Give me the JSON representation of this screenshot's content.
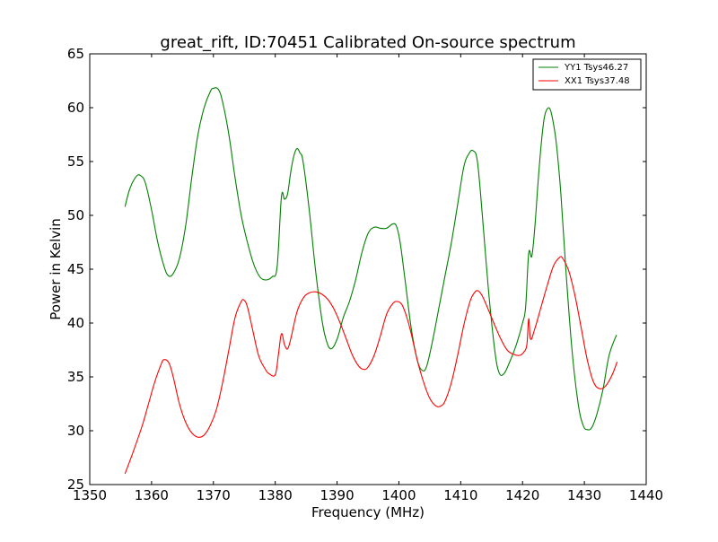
{
  "chart_data": {
    "type": "line",
    "title": "great_rift, ID:70451 Calibrated On-source spectrum",
    "xlabel": "Frequency (MHz)",
    "ylabel": "Power in Kelvin",
    "xlim": [
      1350,
      1440
    ],
    "ylim": [
      25,
      65
    ],
    "xticks": [
      "1350",
      "1360",
      "1370",
      "1380",
      "1390",
      "1400",
      "1410",
      "1420",
      "1430",
      "1440"
    ],
    "yticks": [
      "25",
      "30",
      "35",
      "40",
      "45",
      "50",
      "55",
      "60",
      "65"
    ],
    "grid": false,
    "legend_position": "top-right",
    "series": [
      {
        "name": "YY1 Tsys46.27",
        "color": "#008000",
        "x": [
          1355.7,
          1356.5,
          1357.5,
          1358.2,
          1359.0,
          1360.0,
          1361.0,
          1362.0,
          1362.7,
          1363.5,
          1364.5,
          1365.5,
          1366.5,
          1367.5,
          1368.5,
          1369.5,
          1370.0,
          1370.8,
          1371.5,
          1372.5,
          1373.5,
          1374.5,
          1375.5,
          1376.5,
          1377.5,
          1378.5,
          1379.5,
          1380.3,
          1381.0,
          1381.5,
          1382.0,
          1382.5,
          1383.0,
          1383.5,
          1384.0,
          1384.5,
          1385.5,
          1386.5,
          1387.5,
          1388.2,
          1389.0,
          1390.0,
          1391.0,
          1392.0,
          1393.0,
          1394.0,
          1395.0,
          1396.0,
          1397.0,
          1398.0,
          1399.0,
          1399.6,
          1400.2,
          1401.0,
          1402.0,
          1403.0,
          1403.8,
          1404.5,
          1405.5,
          1406.5,
          1407.5,
          1408.5,
          1409.5,
          1410.5,
          1411.3,
          1412.0,
          1412.7,
          1413.5,
          1414.5,
          1415.5,
          1416.2,
          1417.0,
          1418.0,
          1419.0,
          1420.0,
          1420.5,
          1421.0,
          1421.5,
          1422.0,
          1422.5,
          1423.0,
          1423.5,
          1424.0,
          1424.5,
          1425.0,
          1425.5,
          1426.2,
          1427.0,
          1428.0,
          1429.0,
          1429.8,
          1430.5,
          1431.2,
          1432.0,
          1433.0,
          1434.0,
          1435.2
        ],
        "values": [
          50.8,
          52.5,
          53.6,
          53.7,
          53.0,
          50.5,
          47.5,
          45.3,
          44.4,
          44.6,
          46.0,
          49.0,
          53.5,
          57.5,
          60.0,
          61.5,
          61.8,
          61.7,
          60.5,
          57.5,
          53.5,
          50.0,
          47.5,
          45.5,
          44.3,
          44.0,
          44.3,
          45.2,
          51.7,
          51.5,
          52.0,
          54.0,
          55.5,
          56.2,
          55.8,
          55.0,
          50.5,
          45.0,
          40.5,
          38.5,
          37.6,
          38.5,
          40.5,
          42.0,
          44.0,
          46.5,
          48.3,
          48.9,
          48.8,
          48.8,
          49.2,
          49.0,
          47.5,
          44.0,
          39.5,
          36.5,
          35.6,
          36.0,
          38.5,
          41.5,
          44.5,
          47.5,
          51.0,
          54.5,
          55.7,
          56.0,
          55.0,
          50.0,
          43.0,
          37.5,
          35.4,
          35.3,
          36.5,
          38.0,
          40.0,
          41.5,
          46.5,
          46.2,
          49.0,
          53.0,
          56.5,
          59.0,
          59.9,
          59.8,
          58.5,
          56.5,
          52.0,
          45.0,
          37.5,
          32.5,
          30.5,
          30.1,
          30.3,
          31.5,
          33.8,
          37.0,
          38.9
        ]
      },
      {
        "name": "XX1 Tsys37.48",
        "color": "#ff0000",
        "x": [
          1355.7,
          1357.0,
          1358.5,
          1359.5,
          1360.5,
          1361.5,
          1362.0,
          1362.8,
          1363.5,
          1364.5,
          1365.5,
          1366.5,
          1367.5,
          1368.5,
          1369.5,
          1370.5,
          1371.5,
          1372.5,
          1373.5,
          1374.5,
          1375.0,
          1375.5,
          1376.3,
          1377.3,
          1378.3,
          1379.0,
          1380.0,
          1380.5,
          1381.0,
          1381.5,
          1382.0,
          1382.5,
          1383.5,
          1384.5,
          1385.5,
          1386.5,
          1387.5,
          1388.5,
          1389.5,
          1390.5,
          1391.5,
          1392.5,
          1393.5,
          1394.3,
          1395.0,
          1396.0,
          1397.0,
          1398.0,
          1399.0,
          1399.7,
          1400.5,
          1401.3,
          1402.0,
          1403.0,
          1404.0,
          1405.0,
          1406.0,
          1406.8,
          1407.5,
          1408.5,
          1409.5,
          1410.5,
          1411.5,
          1412.2,
          1412.8,
          1413.5,
          1414.5,
          1415.5,
          1416.5,
          1417.5,
          1418.5,
          1419.5,
          1420.2,
          1420.7,
          1421.0,
          1421.3,
          1422.0,
          1423.0,
          1424.0,
          1425.0,
          1426.0,
          1426.5,
          1427.5,
          1428.5,
          1429.5,
          1430.5,
          1431.5,
          1432.5,
          1433.5,
          1434.5,
          1435.3
        ],
        "values": [
          26.0,
          28.0,
          30.5,
          32.5,
          34.5,
          36.1,
          36.6,
          36.3,
          35.0,
          32.5,
          30.8,
          29.8,
          29.4,
          29.6,
          30.5,
          32.0,
          34.5,
          37.5,
          40.5,
          42.0,
          42.1,
          41.5,
          39.5,
          37.0,
          35.8,
          35.3,
          35.2,
          37.0,
          39.0,
          38.0,
          37.6,
          38.5,
          41.0,
          42.3,
          42.8,
          42.9,
          42.7,
          42.2,
          41.3,
          40.0,
          38.5,
          37.0,
          36.0,
          35.7,
          35.9,
          37.0,
          38.8,
          40.8,
          41.8,
          42.0,
          41.7,
          40.5,
          39.0,
          36.5,
          34.5,
          33.0,
          32.3,
          32.3,
          32.8,
          34.5,
          37.0,
          39.8,
          42.0,
          42.8,
          43.0,
          42.5,
          41.2,
          39.8,
          38.5,
          37.5,
          37.1,
          37.0,
          37.3,
          38.0,
          40.4,
          38.5,
          39.5,
          41.5,
          43.5,
          45.3,
          46.1,
          46.0,
          44.8,
          42.5,
          39.5,
          36.5,
          34.5,
          33.9,
          34.2,
          35.2,
          36.4
        ]
      }
    ]
  }
}
